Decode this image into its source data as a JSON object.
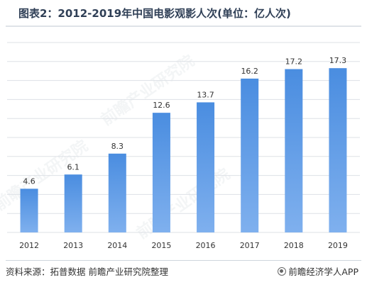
{
  "title": "图表2：2012-2019年中国电影观影人次(单位：亿人次)",
  "source": "资料来源：拓普数据 前瞻产业研究院整理",
  "brand": "前瞻经济学人APP",
  "watermark": "前瞻产业研究院",
  "colors": {
    "bar_top": "#4a8de0",
    "bar_bottom": "#7fb0ee",
    "grid": "#dde1e6"
  },
  "chart_data": {
    "type": "bar",
    "title": "图表2：2012-2019年中国电影观影人次(单位：亿人次)",
    "categories": [
      "2012",
      "2013",
      "2014",
      "2015",
      "2016",
      "2017",
      "2018",
      "2019"
    ],
    "values": [
      4.6,
      6.1,
      8.3,
      12.6,
      13.7,
      16.2,
      17.2,
      17.3
    ],
    "data_labels": [
      "4.6",
      "6.1",
      "8.3",
      "12.6",
      "13.7",
      "16.2",
      "17.2",
      "17.3"
    ],
    "ylim": [
      0,
      20
    ],
    "grid": true,
    "legend": "none"
  }
}
